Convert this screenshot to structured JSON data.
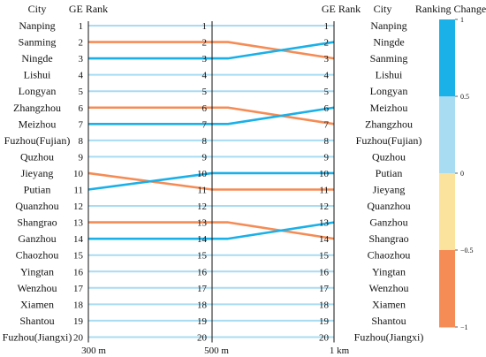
{
  "headers": {
    "left_city": "City",
    "left_rank": "GE Rank",
    "right_rank": "GE Rank",
    "right_city": "City",
    "legend_title": "Ranking Change"
  },
  "axis_labels": [
    "300 m",
    "500 m",
    "1 km"
  ],
  "legend": {
    "ticks": [
      "1",
      "0.5",
      "0",
      "−0.5",
      "−1"
    ],
    "bands": [
      {
        "color": "#1ab0e8",
        "meaning": "rank up"
      },
      {
        "color": "#a8dcf2",
        "meaning": "no change"
      },
      {
        "color": "#fbe39e",
        "meaning": "no change"
      },
      {
        "color": "#f58c55",
        "meaning": "rank down"
      }
    ]
  },
  "colors": {
    "up": "#1ab0e8",
    "down": "#f58c55",
    "same": "#a8dcf2",
    "axis": "#111111"
  },
  "chart_data": {
    "type": "slope",
    "ranks": [
      1,
      2,
      3,
      4,
      5,
      6,
      7,
      8,
      9,
      10,
      11,
      12,
      13,
      14,
      15,
      16,
      17,
      18,
      19,
      20
    ],
    "columns": [
      "300 m",
      "500 m",
      "1 km"
    ],
    "cities_300m": [
      "Nanping",
      "Sanming",
      "Ningde",
      "Lishui",
      "Longyan",
      "Zhangzhou",
      "Meizhou",
      "Fuzhou(Fujian)",
      "Quzhou",
      "Jieyang",
      "Putian",
      "Quanzhou",
      "Shangrao",
      "Ganzhou",
      "Chaozhou",
      "Yingtan",
      "Wenzhou",
      "Xiamen",
      "Shantou",
      "Fuzhou(Jiangxi)"
    ],
    "cities_1km": [
      "Nanping",
      "Ningde",
      "Sanming",
      "Lishui",
      "Longyan",
      "Meizhou",
      "Zhangzhou",
      "Fuzhou(Fujian)",
      "Quzhou",
      "Putian",
      "Jieyang",
      "Quanzhou",
      "Ganzhou",
      "Shangrao",
      "Chaozhou",
      "Yingtan",
      "Wenzhou",
      "Xiamen",
      "Shantou",
      "Fuzhou(Jiangxi)"
    ],
    "rank_changes": [
      {
        "city": "Nanping",
        "ranks": [
          1,
          1,
          1
        ],
        "change": "same"
      },
      {
        "city": "Sanming",
        "ranks": [
          2,
          2,
          3
        ],
        "change": "down"
      },
      {
        "city": "Ningde",
        "ranks": [
          3,
          3,
          2
        ],
        "change": "up"
      },
      {
        "city": "Lishui",
        "ranks": [
          4,
          4,
          4
        ],
        "change": "same"
      },
      {
        "city": "Longyan",
        "ranks": [
          5,
          5,
          5
        ],
        "change": "same"
      },
      {
        "city": "Zhangzhou",
        "ranks": [
          6,
          6,
          7
        ],
        "change": "down"
      },
      {
        "city": "Meizhou",
        "ranks": [
          7,
          7,
          6
        ],
        "change": "up"
      },
      {
        "city": "Fuzhou(Fujian)",
        "ranks": [
          8,
          8,
          8
        ],
        "change": "same"
      },
      {
        "city": "Quzhou",
        "ranks": [
          9,
          9,
          9
        ],
        "change": "same"
      },
      {
        "city": "Jieyang",
        "ranks": [
          10,
          11,
          11
        ],
        "change": "down"
      },
      {
        "city": "Putian",
        "ranks": [
          11,
          10,
          10
        ],
        "change": "up"
      },
      {
        "city": "Quanzhou",
        "ranks": [
          12,
          12,
          12
        ],
        "change": "same"
      },
      {
        "city": "Shangrao",
        "ranks": [
          13,
          13,
          14
        ],
        "change": "down"
      },
      {
        "city": "Ganzhou",
        "ranks": [
          14,
          14,
          13
        ],
        "change": "up"
      },
      {
        "city": "Chaozhou",
        "ranks": [
          15,
          15,
          15
        ],
        "change": "same"
      },
      {
        "city": "Yingtan",
        "ranks": [
          16,
          16,
          16
        ],
        "change": "same"
      },
      {
        "city": "Wenzhou",
        "ranks": [
          17,
          17,
          17
        ],
        "change": "same"
      },
      {
        "city": "Xiamen",
        "ranks": [
          18,
          18,
          18
        ],
        "change": "same"
      },
      {
        "city": "Shantou",
        "ranks": [
          19,
          19,
          19
        ],
        "change": "same"
      },
      {
        "city": "Fuzhou(Jiangxi)",
        "ranks": [
          20,
          20,
          20
        ],
        "change": "same"
      }
    ]
  }
}
